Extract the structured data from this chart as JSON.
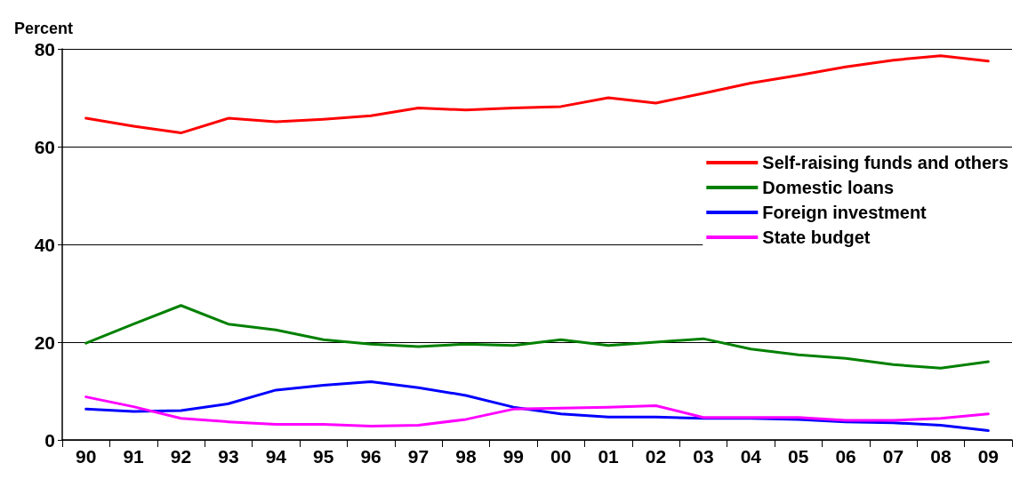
{
  "chart_data": {
    "type": "line",
    "ylabel": "Percent",
    "categories": [
      "90",
      "91",
      "92",
      "93",
      "94",
      "95",
      "96",
      "97",
      "98",
      "99",
      "00",
      "01",
      "02",
      "03",
      "04",
      "05",
      "06",
      "07",
      "08",
      "09"
    ],
    "ylim": [
      0,
      80
    ],
    "yticks": [
      0,
      20,
      40,
      60,
      80
    ],
    "grid": "y",
    "legend": "right",
    "marker": "none",
    "line_style": "solid",
    "series": [
      {
        "name": "Self-raising funds and others",
        "color": "#ff0000",
        "values": [
          65.8,
          64.2,
          62.8,
          65.8,
          65.1,
          65.6,
          66.3,
          67.9,
          67.5,
          67.9,
          68.2,
          70,
          68.9,
          70.9,
          73,
          74.6,
          76.3,
          77.7,
          78.6,
          77.5
        ]
      },
      {
        "name": "Domestic loans",
        "color": "#008000",
        "values": [
          19.8,
          23.7,
          27.5,
          23.7,
          22.5,
          20.5,
          19.6,
          19.1,
          19.6,
          19.3,
          20.5,
          19.3,
          20,
          20.7,
          18.6,
          17.4,
          16.7,
          15.4,
          14.7,
          16
        ]
      },
      {
        "name": "Foreign investment",
        "color": "#0000ff",
        "values": [
          6.3,
          5.8,
          6,
          7.4,
          10.2,
          11.2,
          11.9,
          10.7,
          9.1,
          6.7,
          5.3,
          4.7,
          4.7,
          4.4,
          4.4,
          4.2,
          3.7,
          3.5,
          3,
          1.9
        ]
      },
      {
        "name": "State budget",
        "color": "#ff00ff",
        "values": [
          8.8,
          6.8,
          4.4,
          3.7,
          3.2,
          3.2,
          2.8,
          3,
          4.2,
          6.3,
          6.5,
          6.7,
          7,
          4.6,
          4.6,
          4.6,
          4,
          4,
          4.4,
          5.3
        ]
      }
    ]
  }
}
